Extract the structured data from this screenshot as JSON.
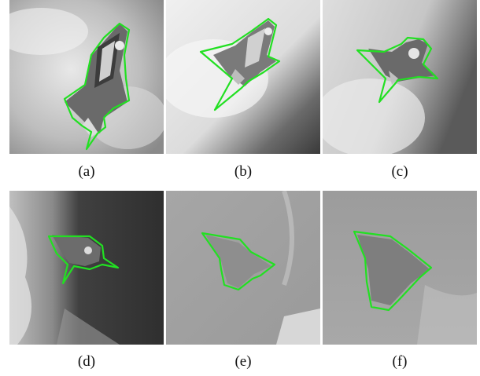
{
  "panels": [
    {
      "id": "a",
      "caption": "(a)"
    },
    {
      "id": "b",
      "caption": "(b)"
    },
    {
      "id": "c",
      "caption": "(c)"
    },
    {
      "id": "d",
      "caption": "(d)"
    },
    {
      "id": "e",
      "caption": "(e)"
    },
    {
      "id": "f",
      "caption": "(f)"
    }
  ],
  "colors": {
    "contour": "#22e022",
    "earth_dark": "#3a3a3a",
    "cloud": "#e6e6e6"
  }
}
